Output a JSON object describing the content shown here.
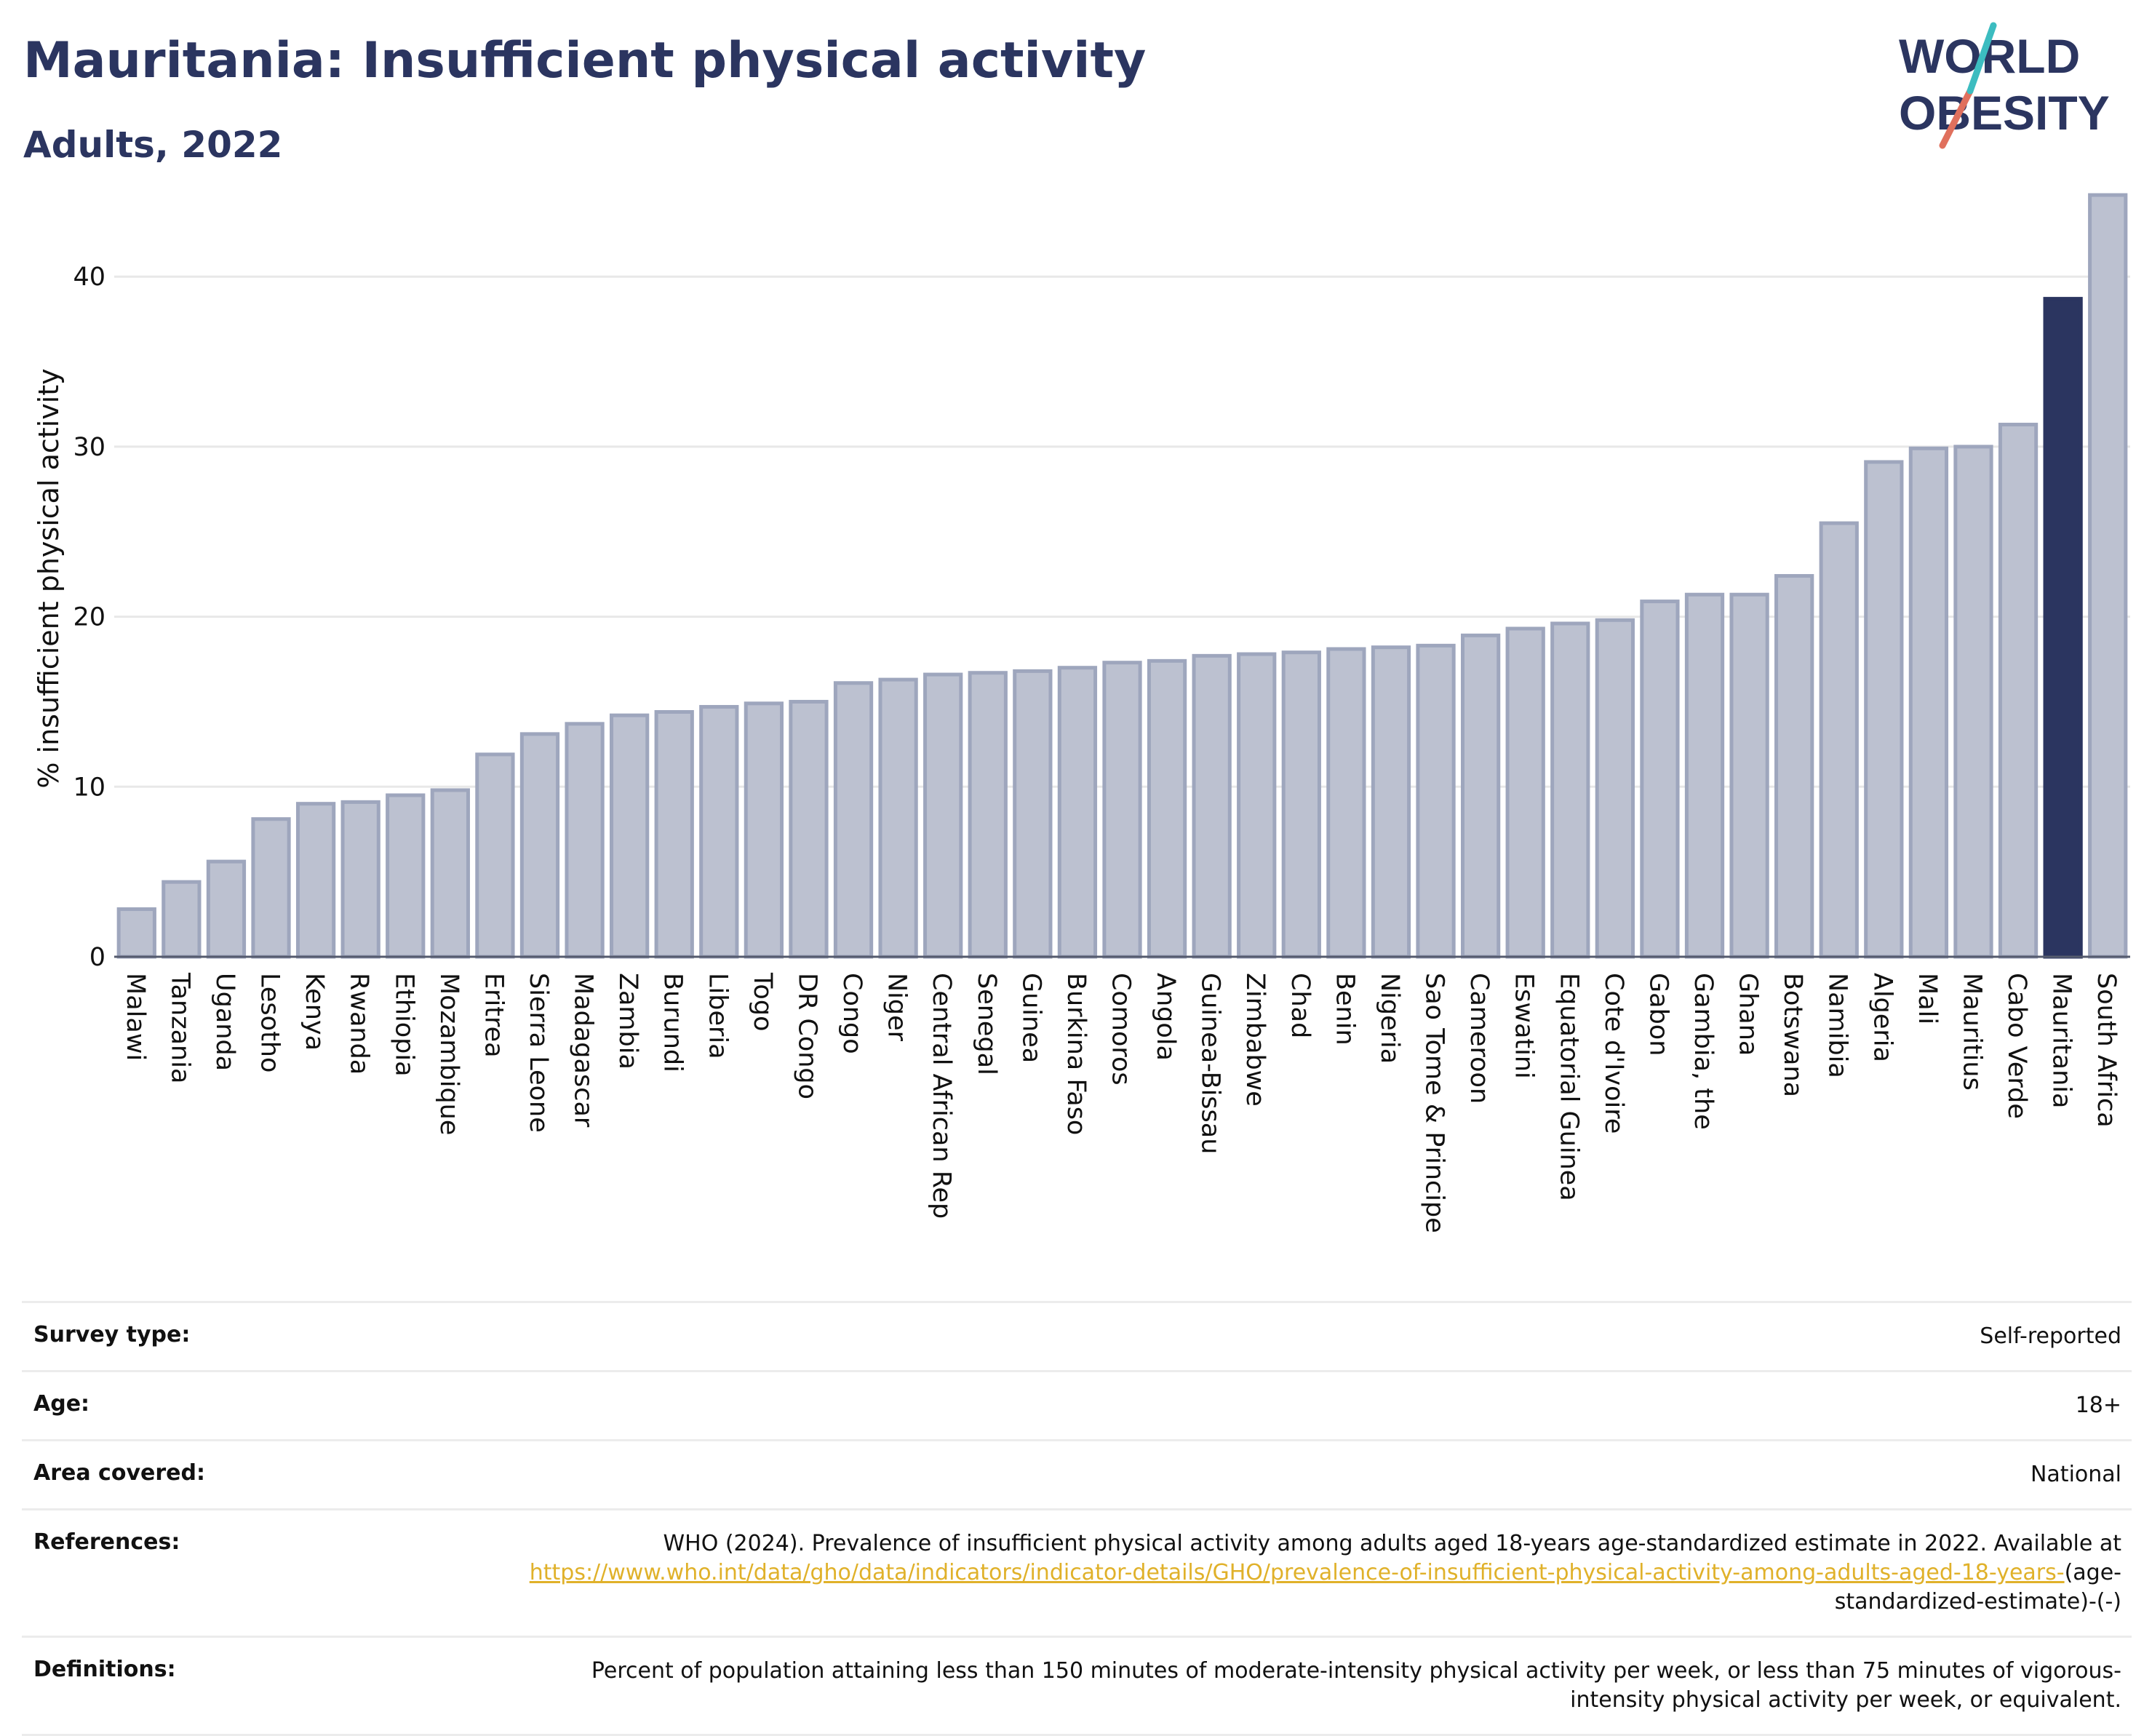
{
  "header": {
    "title": "Mauritania: Insufficient physical activity",
    "subtitle": "Adults, 2022",
    "logo_line1": "WORLD",
    "logo_line2": "OBESITY"
  },
  "colors": {
    "bar": "#bcc1d0",
    "bar_border": "#9ea6bd",
    "highlight": "#2b3560",
    "grid": "#e8e8e8",
    "logo_teal": "#3cbcc0",
    "logo_red": "#e0705d"
  },
  "chart_data": {
    "type": "bar",
    "title": "Mauritania: Insufficient physical activity",
    "subtitle": "Adults, 2022",
    "xlabel": "",
    "ylabel": "% insufficient physical activity",
    "ylim": [
      0,
      46
    ],
    "yticks": [
      0,
      10,
      20,
      30,
      40
    ],
    "grid": true,
    "highlight": "Mauritania",
    "categories": [
      "Malawi",
      "Tanzania",
      "Uganda",
      "Lesotho",
      "Kenya",
      "Rwanda",
      "Ethiopia",
      "Mozambique",
      "Eritrea",
      "Sierra Leone",
      "Madagascar",
      "Zambia",
      "Burundi",
      "Liberia",
      "Togo",
      "DR Congo",
      "Congo",
      "Niger",
      "Central African Rep",
      "Senegal",
      "Guinea",
      "Burkina Faso",
      "Comoros",
      "Angola",
      "Guinea-Bissau",
      "Zimbabwe",
      "Chad",
      "Benin",
      "Nigeria",
      "Sao Tome & Principe",
      "Cameroon",
      "Eswatini",
      "Equatorial Guinea",
      "Cote d'Ivoire",
      "Gabon",
      "Gambia, the",
      "Ghana",
      "Botswana",
      "Namibia",
      "Algeria",
      "Mali",
      "Mauritius",
      "Cabo Verde",
      "Mauritania",
      "South Africa"
    ],
    "values": [
      2.8,
      4.4,
      5.6,
      8.1,
      9.0,
      9.1,
      9.5,
      9.8,
      11.9,
      13.1,
      13.7,
      14.2,
      14.4,
      14.7,
      14.9,
      15.0,
      16.1,
      16.3,
      16.6,
      16.7,
      16.8,
      17.0,
      17.3,
      17.4,
      17.7,
      17.8,
      17.9,
      18.1,
      18.2,
      18.3,
      18.9,
      19.3,
      19.6,
      19.8,
      20.9,
      21.3,
      21.3,
      22.4,
      25.5,
      29.1,
      29.9,
      30.0,
      31.3,
      38.7,
      44.8
    ]
  },
  "meta": {
    "survey_type_label": "Survey type:",
    "survey_type_value": "Self-reported",
    "age_label": "Age:",
    "age_value": "18+",
    "area_label": "Area covered:",
    "area_value": "National",
    "references_label": "References:",
    "references_text": "WHO (2024). Prevalence of insufficient physical activity among adults aged 18-years age-standardized estimate in 2022. Available at",
    "references_link": "https://www.who.int/data/gho/data/indicators/indicator-details/GHO/prevalence-of-insufficient-physical-activity-among-adults-aged-18-years-",
    "references_suffix": "(age-standardized-estimate)-(-)",
    "definitions_label": "Definitions:",
    "definitions_value": "Percent of population attaining less than 150 minutes of moderate-intensity physical activity per week, or less than 75 minutes of vigorous-intensity physical activity per week, or equivalent."
  }
}
